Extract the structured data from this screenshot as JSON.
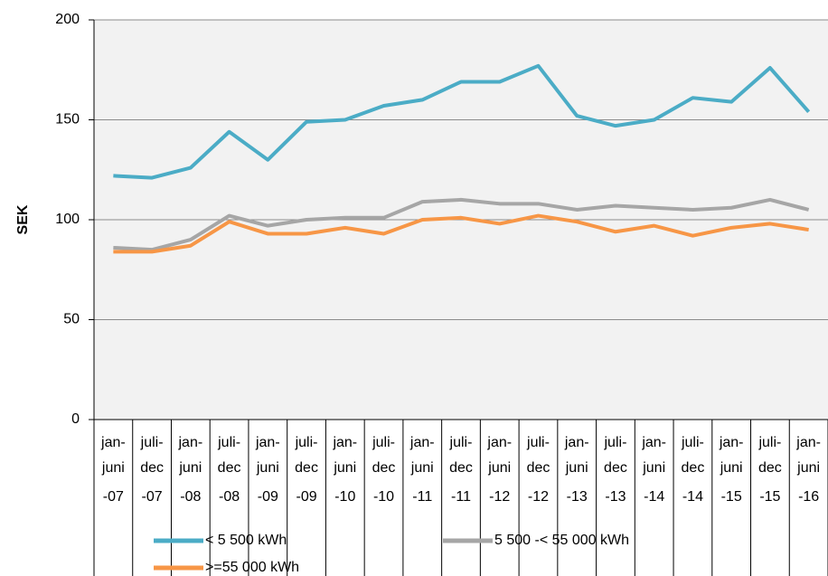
{
  "chart_data": {
    "type": "line",
    "y_label": "SEK",
    "categories": [
      [
        "jan-",
        "juni",
        "-07"
      ],
      [
        "juli-",
        "dec",
        "-07"
      ],
      [
        "jan-",
        "juni",
        "-08"
      ],
      [
        "juli-",
        "dec",
        "-08"
      ],
      [
        "jan-",
        "juni",
        "-09"
      ],
      [
        "juli-",
        "dec",
        "-09"
      ],
      [
        "jan-",
        "juni",
        "-10"
      ],
      [
        "juli-",
        "dec",
        "-10"
      ],
      [
        "jan-",
        "juni",
        "-11"
      ],
      [
        "juli-",
        "dec",
        "-11"
      ],
      [
        "jan-",
        "juni",
        "-12"
      ],
      [
        "juli-",
        "dec",
        "-12"
      ],
      [
        "jan-",
        "juni",
        "-13"
      ],
      [
        "juli-",
        "dec",
        "-13"
      ],
      [
        "jan-",
        "juni",
        "-14"
      ],
      [
        "juli-",
        "dec",
        "-14"
      ],
      [
        "jan-",
        "juni",
        "-15"
      ],
      [
        "juli-",
        "dec",
        "-15"
      ],
      [
        "jan-",
        "juni",
        "-16"
      ]
    ],
    "series": [
      {
        "name": "< 5 500 kWh",
        "color": "#4bacc6",
        "values": [
          122,
          121,
          126,
          144,
          130,
          149,
          150,
          157,
          160,
          169,
          169,
          177,
          152,
          147,
          150,
          161,
          159,
          176,
          154
        ]
      },
      {
        "name": "5 500 -< 55 000 kWh",
        "color": "#a6a6a6",
        "values": [
          86,
          85,
          90,
          102,
          97,
          100,
          101,
          101,
          109,
          110,
          108,
          108,
          105,
          107,
          106,
          105,
          106,
          110,
          105
        ]
      },
      {
        "name": ">=55 000 kWh",
        "color": "#f79646",
        "values": [
          84,
          84,
          87,
          99,
          93,
          93,
          96,
          93,
          100,
          101,
          98,
          102,
          99,
          94,
          97,
          92,
          96,
          98,
          95
        ]
      }
    ],
    "ylim": [
      0,
      200
    ],
    "yticks": [
      0,
      50,
      100,
      150,
      200
    ],
    "grid": true
  }
}
